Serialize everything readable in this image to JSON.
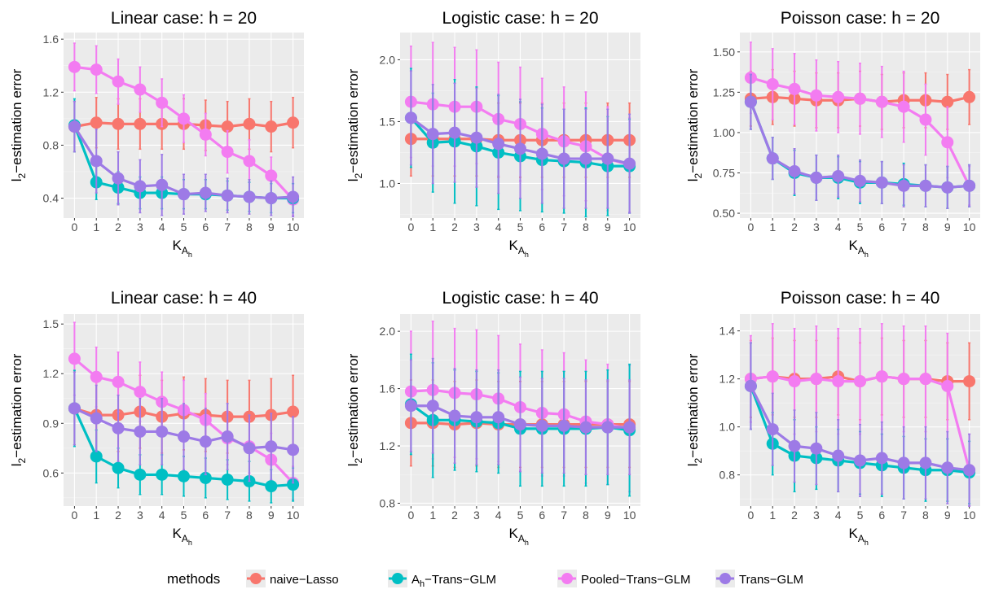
{
  "legend": {
    "title": "methods",
    "items": [
      {
        "label": "naive−Lasso",
        "color": "#F8766D"
      },
      {
        "label": "A",
        "sub": "h",
        "suffix": "−Trans−GLM",
        "color": "#00BFC4"
      },
      {
        "label": "Pooled−Trans−GLM",
        "color": "#F37CF1"
      },
      {
        "label": "Trans−GLM",
        "color": "#9D7AE6"
      }
    ]
  },
  "chart_data": [
    {
      "type": "line",
      "title": "Linear case: h = 20",
      "xlabel": {
        "main": "K",
        "sub": "A",
        "subsub": "h"
      },
      "ylabel": {
        "pre": "l",
        "sub": "2",
        "post": "−estimation error"
      },
      "x": [
        0,
        1,
        2,
        3,
        4,
        5,
        6,
        7,
        8,
        9,
        10
      ],
      "ylim": [
        0.25,
        1.65
      ],
      "yticks": [
        0.4,
        0.8,
        1.2,
        1.6
      ],
      "yticklabels": [
        "0.4",
        "0.8",
        "1.2",
        "1.6"
      ],
      "series": [
        {
          "name": "naive−Lasso",
          "values": [
            0.94,
            0.97,
            0.96,
            0.96,
            0.96,
            0.96,
            0.95,
            0.94,
            0.96,
            0.94,
            0.97
          ],
          "err": [
            0.19,
            0.19,
            0.19,
            0.19,
            0.19,
            0.19,
            0.19,
            0.19,
            0.19,
            0.19,
            0.19
          ]
        },
        {
          "name": "Pooled−Trans−GLM",
          "values": [
            1.39,
            1.37,
            1.28,
            1.22,
            1.12,
            1.0,
            0.88,
            0.75,
            0.68,
            0.57,
            0.39
          ],
          "err": [
            0.18,
            0.18,
            0.17,
            0.17,
            0.18,
            0.18,
            0.16,
            0.16,
            0.16,
            0.14,
            0.12
          ]
        },
        {
          "name": "Aₕ−Trans−GLM",
          "values": [
            0.95,
            0.52,
            0.48,
            0.44,
            0.44,
            0.43,
            0.43,
            0.42,
            0.41,
            0.4,
            0.4
          ],
          "err": [
            0.2,
            0.13,
            0.12,
            0.12,
            0.12,
            0.11,
            0.11,
            0.11,
            0.11,
            0.11,
            0.11
          ]
        },
        {
          "name": "Trans−GLM",
          "values": [
            0.94,
            0.68,
            0.55,
            0.49,
            0.5,
            0.43,
            0.44,
            0.42,
            0.41,
            0.4,
            0.41
          ],
          "err": [
            0.19,
            0.24,
            0.2,
            0.2,
            0.23,
            0.15,
            0.14,
            0.13,
            0.13,
            0.13,
            0.15
          ]
        }
      ]
    },
    {
      "type": "line",
      "title": "Logistic case: h = 20",
      "xlabel": {
        "main": "K",
        "sub": "A",
        "subsub": "h"
      },
      "ylabel": {
        "pre": "l",
        "sub": "2",
        "post": "−estimation error"
      },
      "x": [
        0,
        1,
        2,
        3,
        4,
        5,
        6,
        7,
        8,
        9,
        10
      ],
      "ylim": [
        0.72,
        2.22
      ],
      "yticks": [
        1.0,
        1.5,
        2.0
      ],
      "yticklabels": [
        "1.0",
        "1.5",
        "2.0"
      ],
      "series": [
        {
          "name": "naive−Lasso",
          "values": [
            1.36,
            1.36,
            1.36,
            1.36,
            1.35,
            1.35,
            1.35,
            1.35,
            1.35,
            1.35,
            1.35
          ],
          "err": [
            0.3,
            0.3,
            0.3,
            0.3,
            0.3,
            0.3,
            0.3,
            0.3,
            0.3,
            0.3,
            0.3
          ]
        },
        {
          "name": "Pooled−Trans−GLM",
          "values": [
            1.66,
            1.64,
            1.62,
            1.62,
            1.52,
            1.48,
            1.4,
            1.34,
            1.3,
            1.2,
            1.15
          ],
          "err": [
            0.45,
            0.5,
            0.48,
            0.46,
            0.46,
            0.46,
            0.45,
            0.44,
            0.44,
            0.42,
            0.38
          ]
        },
        {
          "name": "Aₕ−Trans−GLM",
          "values": [
            1.53,
            1.33,
            1.34,
            1.3,
            1.25,
            1.22,
            1.19,
            1.18,
            1.17,
            1.14,
            1.14
          ],
          "err": [
            0.4,
            0.4,
            0.5,
            0.48,
            0.46,
            0.44,
            0.42,
            0.42,
            0.44,
            0.4,
            0.38
          ]
        },
        {
          "name": "Trans−GLM",
          "values": [
            1.53,
            1.4,
            1.41,
            1.37,
            1.32,
            1.28,
            1.24,
            1.2,
            1.2,
            1.2,
            1.16
          ],
          "err": [
            0.38,
            0.4,
            0.4,
            0.4,
            0.4,
            0.4,
            0.4,
            0.4,
            0.4,
            0.4,
            0.4
          ]
        }
      ]
    },
    {
      "type": "line",
      "title": "Poisson case: h = 20",
      "xlabel": {
        "main": "K",
        "sub": "A",
        "subsub": "h"
      },
      "ylabel": {
        "pre": "l",
        "sub": "2",
        "post": "−estimation error"
      },
      "x": [
        0,
        1,
        2,
        3,
        4,
        5,
        6,
        7,
        8,
        9,
        10
      ],
      "ylim": [
        0.47,
        1.62
      ],
      "yticks": [
        0.5,
        0.75,
        1.0,
        1.25,
        1.5
      ],
      "yticklabels": [
        "0.50",
        "0.75",
        "1.00",
        "1.25",
        "1.50"
      ],
      "series": [
        {
          "name": "naive−Lasso",
          "values": [
            1.21,
            1.22,
            1.21,
            1.2,
            1.2,
            1.21,
            1.19,
            1.2,
            1.2,
            1.19,
            1.22
          ],
          "err": [
            0.17,
            0.17,
            0.17,
            0.17,
            0.17,
            0.17,
            0.17,
            0.17,
            0.17,
            0.17,
            0.17
          ]
        },
        {
          "name": "Pooled−Trans−GLM",
          "values": [
            1.34,
            1.3,
            1.27,
            1.23,
            1.22,
            1.21,
            1.19,
            1.16,
            1.08,
            0.94,
            0.67
          ],
          "err": [
            0.22,
            0.22,
            0.22,
            0.22,
            0.22,
            0.22,
            0.22,
            0.22,
            0.22,
            0.22,
            0.12
          ]
        },
        {
          "name": "Aₕ−Trans−GLM",
          "values": [
            1.19,
            0.84,
            0.75,
            0.72,
            0.72,
            0.69,
            0.69,
            0.68,
            0.67,
            0.66,
            0.67
          ],
          "err": [
            0.17,
            0.13,
            0.14,
            0.14,
            0.13,
            0.13,
            0.13,
            0.13,
            0.13,
            0.13,
            0.13
          ]
        },
        {
          "name": "Trans−GLM",
          "values": [
            1.19,
            0.84,
            0.76,
            0.72,
            0.73,
            0.7,
            0.69,
            0.67,
            0.67,
            0.66,
            0.67
          ],
          "err": [
            0.17,
            0.13,
            0.14,
            0.14,
            0.13,
            0.13,
            0.13,
            0.13,
            0.13,
            0.13,
            0.13
          ]
        }
      ]
    },
    {
      "type": "line",
      "title": "Linear case: h = 40",
      "xlabel": {
        "main": "K",
        "sub": "A",
        "subsub": "h"
      },
      "ylabel": {
        "pre": "l",
        "sub": "2",
        "post": "−estimation error"
      },
      "x": [
        0,
        1,
        2,
        3,
        4,
        5,
        6,
        7,
        8,
        9,
        10
      ],
      "ylim": [
        0.4,
        1.56
      ],
      "yticks": [
        0.6,
        0.9,
        1.2,
        1.5
      ],
      "yticklabels": [
        "0.6",
        "0.9",
        "1.2",
        "1.5"
      ],
      "series": [
        {
          "name": "naive−Lasso",
          "values": [
            0.99,
            0.95,
            0.95,
            0.97,
            0.94,
            0.96,
            0.95,
            0.94,
            0.94,
            0.95,
            0.97
          ],
          "err": [
            0.22,
            0.22,
            0.22,
            0.22,
            0.22,
            0.22,
            0.22,
            0.22,
            0.22,
            0.22,
            0.22
          ]
        },
        {
          "name": "Pooled−Trans−GLM",
          "values": [
            1.29,
            1.18,
            1.15,
            1.09,
            1.03,
            0.98,
            0.92,
            0.81,
            0.76,
            0.68,
            0.54
          ],
          "err": [
            0.22,
            0.18,
            0.18,
            0.18,
            0.18,
            0.18,
            0.16,
            0.16,
            0.16,
            0.16,
            0.1
          ]
        },
        {
          "name": "Aₕ−Trans−GLM",
          "values": [
            0.99,
            0.7,
            0.63,
            0.59,
            0.59,
            0.58,
            0.57,
            0.56,
            0.55,
            0.52,
            0.53
          ],
          "err": [
            0.23,
            0.16,
            0.12,
            0.12,
            0.12,
            0.12,
            0.12,
            0.12,
            0.12,
            0.1,
            0.1
          ]
        },
        {
          "name": "Trans−GLM",
          "values": [
            0.99,
            0.93,
            0.87,
            0.85,
            0.85,
            0.82,
            0.79,
            0.82,
            0.75,
            0.76,
            0.74
          ],
          "err": [
            0.22,
            0.2,
            0.2,
            0.2,
            0.2,
            0.2,
            0.2,
            0.2,
            0.2,
            0.2,
            0.2
          ]
        }
      ]
    },
    {
      "type": "line",
      "title": "Logistic case: h = 40",
      "xlabel": {
        "main": "K",
        "sub": "A",
        "subsub": "h"
      },
      "ylabel": {
        "pre": "l",
        "sub": "2",
        "post": "−estimation error"
      },
      "x": [
        0,
        1,
        2,
        3,
        4,
        5,
        6,
        7,
        8,
        9,
        10
      ],
      "ylim": [
        0.78,
        2.12
      ],
      "yticks": [
        0.8,
        1.2,
        1.6,
        2.0
      ],
      "yticklabels": [
        "0.8",
        "1.2",
        "1.6",
        "2.0"
      ],
      "series": [
        {
          "name": "naive−Lasso",
          "values": [
            1.36,
            1.36,
            1.35,
            1.36,
            1.35,
            1.35,
            1.35,
            1.35,
            1.35,
            1.35,
            1.35
          ],
          "err": [
            0.3,
            0.3,
            0.3,
            0.3,
            0.3,
            0.3,
            0.3,
            0.3,
            0.3,
            0.3,
            0.3
          ]
        },
        {
          "name": "Pooled−Trans−GLM",
          "values": [
            1.58,
            1.59,
            1.57,
            1.56,
            1.53,
            1.47,
            1.43,
            1.42,
            1.37,
            1.35,
            1.32
          ],
          "err": [
            0.42,
            0.48,
            0.45,
            0.45,
            0.44,
            0.44,
            0.44,
            0.43,
            0.43,
            0.42,
            0.44
          ]
        },
        {
          "name": "Aₕ−Trans−GLM",
          "values": [
            1.49,
            1.38,
            1.38,
            1.37,
            1.36,
            1.32,
            1.32,
            1.32,
            1.32,
            1.33,
            1.31
          ],
          "err": [
            0.35,
            0.4,
            0.35,
            0.35,
            0.35,
            0.4,
            0.4,
            0.4,
            0.4,
            0.4,
            0.46
          ]
        },
        {
          "name": "Trans−GLM",
          "values": [
            1.48,
            1.48,
            1.41,
            1.4,
            1.4,
            1.35,
            1.34,
            1.34,
            1.33,
            1.33,
            1.33
          ],
          "err": [
            0.32,
            0.33,
            0.33,
            0.33,
            0.33,
            0.33,
            0.33,
            0.33,
            0.33,
            0.33,
            0.33
          ]
        }
      ]
    },
    {
      "type": "line",
      "title": "Poisson case: h = 40",
      "xlabel": {
        "main": "K",
        "sub": "A",
        "subsub": "h"
      },
      "ylabel": {
        "pre": "l",
        "sub": "2",
        "post": "−estimation error"
      },
      "x": [
        0,
        1,
        2,
        3,
        4,
        5,
        6,
        7,
        8,
        9,
        10
      ],
      "ylim": [
        0.67,
        1.47
      ],
      "yticks": [
        0.8,
        1.0,
        1.2,
        1.4
      ],
      "yticklabels": [
        "0.8",
        "1.0",
        "1.2",
        "1.4"
      ],
      "series": [
        {
          "name": "naive−Lasso",
          "values": [
            1.2,
            1.21,
            1.2,
            1.2,
            1.21,
            1.19,
            1.21,
            1.2,
            1.2,
            1.19,
            1.19
          ],
          "err": [
            0.16,
            0.16,
            0.16,
            0.16,
            0.16,
            0.16,
            0.16,
            0.16,
            0.16,
            0.16,
            0.16
          ]
        },
        {
          "name": "Pooled−Trans−GLM",
          "values": [
            1.2,
            1.21,
            1.19,
            1.2,
            1.19,
            1.19,
            1.21,
            1.2,
            1.2,
            1.17,
            0.82
          ],
          "err": [
            0.18,
            0.22,
            0.22,
            0.22,
            0.22,
            0.22,
            0.22,
            0.22,
            0.22,
            0.22,
            0.15
          ]
        },
        {
          "name": "Aₕ−Trans−GLM",
          "values": [
            1.17,
            0.93,
            0.88,
            0.87,
            0.86,
            0.85,
            0.84,
            0.83,
            0.82,
            0.82,
            0.81
          ],
          "err": [
            0.18,
            0.13,
            0.15,
            0.13,
            0.13,
            0.13,
            0.13,
            0.13,
            0.13,
            0.13,
            0.13
          ]
        },
        {
          "name": "Trans−GLM",
          "values": [
            1.17,
            0.99,
            0.92,
            0.91,
            0.88,
            0.86,
            0.87,
            0.85,
            0.85,
            0.83,
            0.82
          ],
          "err": [
            0.18,
            0.15,
            0.15,
            0.15,
            0.15,
            0.15,
            0.15,
            0.15,
            0.15,
            0.15,
            0.15
          ]
        }
      ]
    }
  ]
}
